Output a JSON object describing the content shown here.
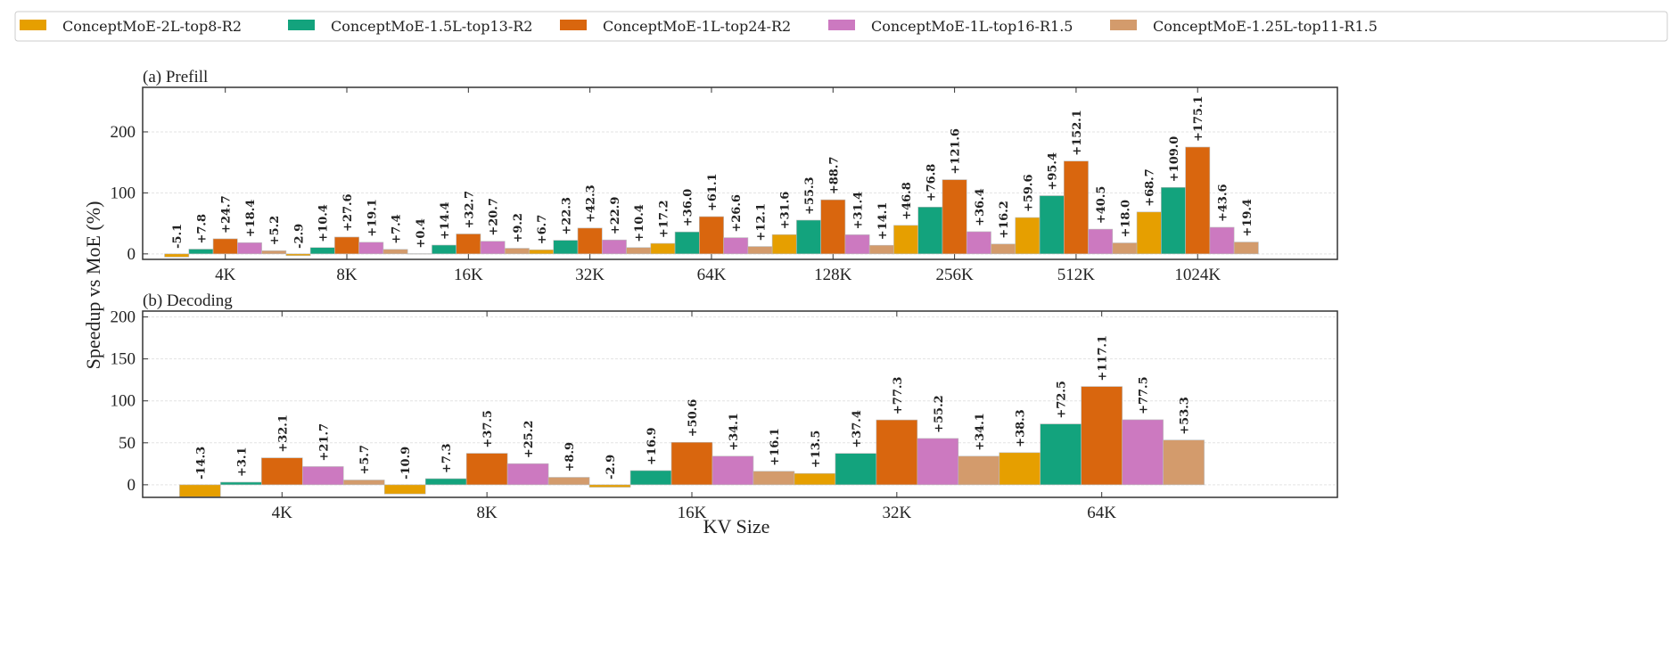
{
  "chart_data": {
    "type": "bar",
    "legend_placement": "top",
    "ylabel": "Speedup vs MoE (%)",
    "xlabel": "KV Size",
    "series_names": [
      "ConceptMoE-2L-top8-R2",
      "ConceptMoE-1.5L-top13-R2",
      "ConceptMoE-1L-top24-R2",
      "ConceptMoE-1L-top16-R1.5",
      "ConceptMoE-1.25L-top11-R1.5"
    ],
    "colors": [
      "#E69F00",
      "#13A37D",
      "#D9660E",
      "#CC79C0",
      "#D39B6C"
    ],
    "panels": [
      {
        "title": "(a) Prefill",
        "categories": [
          "4K",
          "8K",
          "16K",
          "32K",
          "64K",
          "128K",
          "256K",
          "512K",
          "1024K"
        ],
        "ylim": [
          -9,
          273
        ],
        "yticks": [
          0,
          100,
          200
        ],
        "grid": true,
        "series": [
          {
            "name": "ConceptMoE-2L-top8-R2",
            "values": [
              -5.1,
              -2.9,
              0.4,
              6.7,
              17.2,
              31.6,
              46.8,
              59.6,
              68.7
            ]
          },
          {
            "name": "ConceptMoE-1.5L-top13-R2",
            "values": [
              7.8,
              10.4,
              14.4,
              22.3,
              36.0,
              55.3,
              76.8,
              95.4,
              109.0
            ]
          },
          {
            "name": "ConceptMoE-1L-top24-R2",
            "values": [
              24.7,
              27.6,
              32.7,
              42.3,
              61.1,
              88.7,
              121.6,
              152.1,
              175.1
            ]
          },
          {
            "name": "ConceptMoE-1L-top16-R1.5",
            "values": [
              18.4,
              19.1,
              20.7,
              22.9,
              26.6,
              31.4,
              36.4,
              40.5,
              43.6
            ]
          },
          {
            "name": "ConceptMoE-1.25L-top11-R1.5",
            "values": [
              5.2,
              7.4,
              9.2,
              10.4,
              12.1,
              14.1,
              16.2,
              18.0,
              19.4
            ]
          }
        ]
      },
      {
        "title": "(b) Decoding",
        "categories": [
          "4K",
          "8K",
          "16K",
          "32K",
          "64K"
        ],
        "ylim": [
          -15,
          207
        ],
        "yticks": [
          0,
          50,
          100,
          150,
          200
        ],
        "grid": true,
        "series": [
          {
            "name": "ConceptMoE-2L-top8-R2",
            "values": [
              -14.3,
              -10.9,
              -2.9,
              13.5,
              38.3
            ]
          },
          {
            "name": "ConceptMoE-1.5L-top13-R2",
            "values": [
              3.1,
              7.3,
              16.9,
              37.4,
              72.5
            ]
          },
          {
            "name": "ConceptMoE-1L-top24-R2",
            "values": [
              32.1,
              37.5,
              50.6,
              77.3,
              117.1
            ]
          },
          {
            "name": "ConceptMoE-1L-top16-R1.5",
            "values": [
              21.7,
              25.2,
              34.1,
              55.2,
              77.5
            ]
          },
          {
            "name": "ConceptMoE-1.25L-top11-R1.5",
            "values": [
              5.7,
              8.9,
              16.1,
              34.1,
              53.3
            ]
          }
        ]
      }
    ]
  }
}
